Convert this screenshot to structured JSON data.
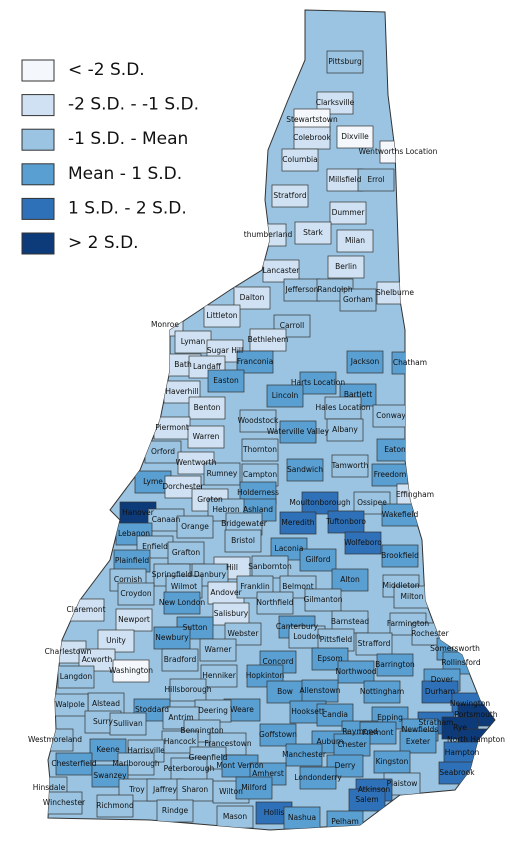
{
  "legend": [
    {
      "label": "< -2 S.D.",
      "color": "#f4f8fc"
    },
    {
      "label": "-2 S.D. - -1 S.D.",
      "color": "#cfe1f2"
    },
    {
      "label": "-1 S.D. - Mean",
      "color": "#9ac4e2"
    },
    {
      "label": "Mean - 1 S.D.",
      "color": "#5a9fd2"
    },
    {
      "label": "1 S.D. - 2 S.D.",
      "color": "#2f71b8"
    },
    {
      "label": "> 2 S.D.",
      "color": "#0d3a78"
    }
  ],
  "towns": [
    {
      "name": "Pittsburg",
      "class": 2
    },
    {
      "name": "Clarksville",
      "class": 1
    },
    {
      "name": "Stewartstown",
      "class": 0
    },
    {
      "name": "Colebrook",
      "class": 1
    },
    {
      "name": "Dixville",
      "class": 0
    },
    {
      "name": "Wentworths Location",
      "class": 0
    },
    {
      "name": "Columbia",
      "class": 1
    },
    {
      "name": "Millsfield",
      "class": 1
    },
    {
      "name": "Errol",
      "class": 2
    },
    {
      "name": "Stratford",
      "class": 1
    },
    {
      "name": "Dummer",
      "class": 1
    },
    {
      "name": "thumberland",
      "class": 1
    },
    {
      "name": "Stark",
      "class": 1
    },
    {
      "name": "Milan",
      "class": 1
    },
    {
      "name": "Berlin",
      "class": 1
    },
    {
      "name": "Lancaster",
      "class": 1
    },
    {
      "name": "Jefferson",
      "class": 2
    },
    {
      "name": "Randolph",
      "class": 2
    },
    {
      "name": "Gorham",
      "class": 2
    },
    {
      "name": "Shelburne",
      "class": 1
    },
    {
      "name": "Dalton",
      "class": 1
    },
    {
      "name": "Littleton",
      "class": 1
    },
    {
      "name": "Carroll",
      "class": 2
    },
    {
      "name": "Monroe",
      "class": 1
    },
    {
      "name": "Lyman",
      "class": 1
    },
    {
      "name": "Bethlehem",
      "class": 1
    },
    {
      "name": "Sugar Hill",
      "class": 1
    },
    {
      "name": "Bath",
      "class": 1
    },
    {
      "name": "Landaff",
      "class": 1
    },
    {
      "name": "Franconia",
      "class": 3
    },
    {
      "name": "Jackson",
      "class": 3
    },
    {
      "name": "Chatham",
      "class": 3
    },
    {
      "name": "Easton",
      "class": 3
    },
    {
      "name": "Harts Location",
      "class": 3
    },
    {
      "name": "Bartlett",
      "class": 3
    },
    {
      "name": "Haverhill",
      "class": 1
    },
    {
      "name": "Lincoln",
      "class": 3
    },
    {
      "name": "Hales Location",
      "class": 2
    },
    {
      "name": "Benton",
      "class": 1
    },
    {
      "name": "Conway",
      "class": 2
    },
    {
      "name": "Woodstock",
      "class": 2
    },
    {
      "name": "Piermont",
      "class": 1
    },
    {
      "name": "Waterville Valley",
      "class": 3
    },
    {
      "name": "Albany",
      "class": 2
    },
    {
      "name": "Warren",
      "class": 1
    },
    {
      "name": "Eaton",
      "class": 3
    },
    {
      "name": "Orford",
      "class": 2
    },
    {
      "name": "Thornton",
      "class": 2
    },
    {
      "name": "Wentworth",
      "class": 1
    },
    {
      "name": "Sandwich",
      "class": 3
    },
    {
      "name": "Tamworth",
      "class": 2
    },
    {
      "name": "Freedom",
      "class": 3
    },
    {
      "name": "Rumney",
      "class": 2
    },
    {
      "name": "Campton",
      "class": 2
    },
    {
      "name": "Lyme",
      "class": 3
    },
    {
      "name": "Dorchester",
      "class": 1
    },
    {
      "name": "Effingham",
      "class": 1
    },
    {
      "name": "Groton",
      "class": 1
    },
    {
      "name": "Holderness",
      "class": 3
    },
    {
      "name": "Moultonborough",
      "class": 4
    },
    {
      "name": "Ossipee",
      "class": 2
    },
    {
      "name": "Hanover",
      "class": 5
    },
    {
      "name": "Ashland",
      "class": 3
    },
    {
      "name": "Hebron",
      "class": 2
    },
    {
      "name": "Canaan",
      "class": 2
    },
    {
      "name": "Bridgewater",
      "class": 2
    },
    {
      "name": "Meredith",
      "class": 4
    },
    {
      "name": "Tuftonboro",
      "class": 4
    },
    {
      "name": "Orange",
      "class": 2
    },
    {
      "name": "Wolfeboro",
      "class": 4
    },
    {
      "name": "Wakefield",
      "class": 3
    },
    {
      "name": "Lebanon",
      "class": 3
    },
    {
      "name": "Bristol",
      "class": 2
    },
    {
      "name": "Enfield",
      "class": 2
    },
    {
      "name": "Grafton",
      "class": 2
    },
    {
      "name": "Laconia",
      "class": 3
    },
    {
      "name": "Gilford",
      "class": 3
    },
    {
      "name": "Brookfield",
      "class": 3
    },
    {
      "name": "Plainfield",
      "class": 3
    },
    {
      "name": "Sanbornton",
      "class": 2
    },
    {
      "name": "Hill",
      "class": 1
    },
    {
      "name": "Springfield",
      "class": 2
    },
    {
      "name": "Danbury",
      "class": 2
    },
    {
      "name": "Alton",
      "class": 3
    },
    {
      "name": "Cornish",
      "class": 2
    },
    {
      "name": "Middleton",
      "class": 2
    },
    {
      "name": "Wilmot",
      "class": 2
    },
    {
      "name": "Andover",
      "class": 1
    },
    {
      "name": "Belmont",
      "class": 2
    },
    {
      "name": "Franklin",
      "class": 2
    },
    {
      "name": "New London",
      "class": 3
    },
    {
      "name": "Croydon",
      "class": 2
    },
    {
      "name": "Milton",
      "class": 2
    },
    {
      "name": "Northfield",
      "class": 2
    },
    {
      "name": "Gilmanton",
      "class": 2
    },
    {
      "name": "Claremont",
      "class": 1
    },
    {
      "name": "Newport",
      "class": 1
    },
    {
      "name": "Salisbury",
      "class": 1
    },
    {
      "name": "Sutton",
      "class": 3
    },
    {
      "name": "Barnstead",
      "class": 2
    },
    {
      "name": "Farmington",
      "class": 2
    },
    {
      "name": "Canterbury",
      "class": 3
    },
    {
      "name": "Webster",
      "class": 2
    },
    {
      "name": "Rochester",
      "class": 2
    },
    {
      "name": "Unity",
      "class": 1
    },
    {
      "name": "Newbury",
      "class": 3
    },
    {
      "name": "Loudon",
      "class": 2
    },
    {
      "name": "Pittsfield",
      "class": 2
    },
    {
      "name": "Strafford",
      "class": 2
    },
    {
      "name": "Somersworth",
      "class": 3
    },
    {
      "name": "Charlestown",
      "class": 1
    },
    {
      "name": "Bradford",
      "class": 2
    },
    {
      "name": "Warner",
      "class": 2
    },
    {
      "name": "Acworth",
      "class": 1
    },
    {
      "name": "Washington",
      "class": 0
    },
    {
      "name": "Rollinsford",
      "class": 3
    },
    {
      "name": "Barrington",
      "class": 3
    },
    {
      "name": "Concord",
      "class": 3
    },
    {
      "name": "Epsom",
      "class": 3
    },
    {
      "name": "Dover",
      "class": 3
    },
    {
      "name": "Henniker",
      "class": 2
    },
    {
      "name": "Hopkinton",
      "class": 3
    },
    {
      "name": "Langdon",
      "class": 2
    },
    {
      "name": "Northwood",
      "class": 3
    },
    {
      "name": "Bow",
      "class": 3
    },
    {
      "name": "Allenstown",
      "class": 3
    },
    {
      "name": "Nottingham",
      "class": 3
    },
    {
      "name": "Durham",
      "class": 4
    },
    {
      "name": "Hillsborough",
      "class": 2
    },
    {
      "name": "Alstead",
      "class": 2
    },
    {
      "name": "Newington",
      "class": 4
    },
    {
      "name": "Walpole",
      "class": 2
    },
    {
      "name": "Stoddard",
      "class": 3
    },
    {
      "name": "Weare",
      "class": 3
    },
    {
      "name": "Deering",
      "class": 2
    },
    {
      "name": "Hooksett",
      "class": 3
    },
    {
      "name": "Portsmouth",
      "class": 5
    },
    {
      "name": "Candia",
      "class": 3
    },
    {
      "name": "Epping",
      "class": 3
    },
    {
      "name": "Surry",
      "class": 2
    },
    {
      "name": "Sullivan",
      "class": 2
    },
    {
      "name": "Antrim",
      "class": 2
    },
    {
      "name": "Stratham",
      "class": 4
    },
    {
      "name": "Bennington",
      "class": 2
    },
    {
      "name": "Raymond",
      "class": 3
    },
    {
      "name": "Newfields",
      "class": 3
    },
    {
      "name": "Rye",
      "class": 5
    },
    {
      "name": "Westmoreland",
      "class": 2
    },
    {
      "name": "North Hampton",
      "class": 5
    },
    {
      "name": "Goffstown",
      "class": 3
    },
    {
      "name": "Auburn",
      "class": 3
    },
    {
      "name": "Fremont",
      "class": 3
    },
    {
      "name": "Exeter",
      "class": 3
    },
    {
      "name": "Chester",
      "class": 3
    },
    {
      "name": "Hancock",
      "class": 2
    },
    {
      "name": "Francestown",
      "class": 2
    },
    {
      "name": "Keene",
      "class": 3
    },
    {
      "name": "Harrisville",
      "class": 2
    },
    {
      "name": "Hampton",
      "class": 4
    },
    {
      "name": "Manchester",
      "class": 3
    },
    {
      "name": "Marlborough",
      "class": 2
    },
    {
      "name": "Greenfield",
      "class": 2
    },
    {
      "name": "Peterborough",
      "class": 2
    },
    {
      "name": "Kingston",
      "class": 3
    },
    {
      "name": "Chesterfield",
      "class": 3
    },
    {
      "name": "Mont Vernon",
      "class": 3
    },
    {
      "name": "Derry",
      "class": 3
    },
    {
      "name": "Seabrook",
      "class": 4
    },
    {
      "name": "Amherst",
      "class": 3
    },
    {
      "name": "Londonderry",
      "class": 3
    },
    {
      "name": "Swanzey",
      "class": 3
    },
    {
      "name": "Plaistow",
      "class": 2
    },
    {
      "name": "Atkinson",
      "class": 4
    },
    {
      "name": "Hinsdale",
      "class": 2
    },
    {
      "name": "Troy",
      "class": 2
    },
    {
      "name": "Jaffrey",
      "class": 2
    },
    {
      "name": "Sharon",
      "class": 2
    },
    {
      "name": "Wilton",
      "class": 2
    },
    {
      "name": "Milford",
      "class": 3
    },
    {
      "name": "Salem",
      "class": 4
    },
    {
      "name": "Winchester",
      "class": 2
    },
    {
      "name": "Richmond",
      "class": 2
    },
    {
      "name": "Rindge",
      "class": 2
    },
    {
      "name": "Mason",
      "class": 2
    },
    {
      "name": "Hollis",
      "class": 4
    },
    {
      "name": "Nashua",
      "class": 3
    },
    {
      "name": "Pelham",
      "class": 3
    }
  ]
}
